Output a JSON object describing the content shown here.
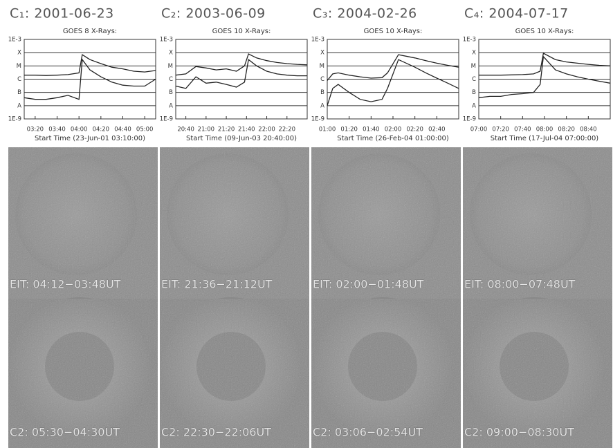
{
  "chart_data": [
    {
      "type": "line",
      "title": "C₁: 2001-06-23",
      "subtitle": "GOES 8 X-Rays:",
      "xlabel": "Start Time (23-Jun-01 03:10:00)",
      "x": [
        "03:10",
        "03:20",
        "03:30",
        "03:40",
        "03:50",
        "04:00",
        "04:03",
        "04:10",
        "04:20",
        "04:30",
        "04:40",
        "04:50",
        "05:00",
        "05:10"
      ],
      "xlim": [
        "03:10",
        "05:10"
      ],
      "xticks": [
        "03:20",
        "03:40",
        "04:00",
        "04:20",
        "04:40",
        "05:00"
      ],
      "log_scale": true,
      "ylim": [
        1e-09,
        0.001
      ],
      "yticks": [
        {
          "value": 1e-09,
          "label": "1E-9"
        },
        {
          "value": 1e-08,
          "label": "A"
        },
        {
          "value": 1e-07,
          "label": "B"
        },
        {
          "value": 1e-06,
          "label": "C"
        },
        {
          "value": 1e-05,
          "label": "M"
        },
        {
          "value": 0.0001,
          "label": "X"
        },
        {
          "value": 0.001,
          "label": "1E-3"
        }
      ],
      "grid": true,
      "series": [
        {
          "color": "#222222",
          "values": [
            2e-06,
            2e-06,
            1.9e-06,
            2e-06,
            2.2e-06,
            3e-06,
            7e-05,
            3e-05,
            1.5e-05,
            8e-06,
            6e-06,
            4e-06,
            3.5e-06,
            4.5e-06
          ]
        },
        {
          "color": "#222222",
          "values": [
            4e-08,
            3e-08,
            3e-08,
            4e-08,
            6e-08,
            3e-08,
            3e-05,
            5e-06,
            1.5e-06,
            6e-07,
            3.5e-07,
            3e-07,
            3e-07,
            1e-06
          ]
        }
      ]
    },
    {
      "type": "line",
      "title": "C₂: 2003-06-09",
      "subtitle": "GOES 10 X-Rays:",
      "xlabel": "Start Time (09-Jun-03 20:40:00)",
      "x": [
        "20:30",
        "20:40",
        "20:50",
        "21:00",
        "21:10",
        "21:20",
        "21:30",
        "21:38",
        "21:42",
        "21:50",
        "22:00",
        "22:10",
        "22:20",
        "22:30",
        "22:40"
      ],
      "xlim": [
        "20:30",
        "22:40"
      ],
      "xticks": [
        "20:40",
        "21:00",
        "21:20",
        "21:40",
        "22:00",
        "22:20"
      ],
      "log_scale": true,
      "ylim": [
        1e-09,
        0.001
      ],
      "yticks": [
        {
          "value": 1e-09,
          "label": "1E-9"
        },
        {
          "value": 1e-08,
          "label": "A"
        },
        {
          "value": 1e-07,
          "label": "B"
        },
        {
          "value": 1e-06,
          "label": "C"
        },
        {
          "value": 1e-05,
          "label": "M"
        },
        {
          "value": 0.0001,
          "label": "X"
        },
        {
          "value": 0.001,
          "label": "1E-3"
        }
      ],
      "grid": true,
      "series": [
        {
          "color": "#222222",
          "values": [
            2e-06,
            2.5e-06,
            9e-06,
            7e-06,
            5e-06,
            6e-06,
            4e-06,
            1e-05,
            8e-05,
            4e-05,
            2.5e-05,
            1.8e-05,
            1.5e-05,
            1.3e-05,
            1.2e-05
          ]
        },
        {
          "color": "#222222",
          "values": [
            3e-07,
            2e-07,
            1.5e-06,
            5e-07,
            6e-07,
            4e-07,
            2.5e-07,
            6e-07,
            3e-05,
            1e-05,
            4e-06,
            2.5e-06,
            2e-06,
            1.8e-06,
            1.8e-06
          ]
        }
      ]
    },
    {
      "type": "line",
      "title": "C₃: 2004-02-26",
      "subtitle": "GOES 10 X-Rays:",
      "xlabel": "Start Time (26-Feb-04 01:00:00)",
      "x": [
        "01:00",
        "01:05",
        "01:10",
        "01:20",
        "01:30",
        "01:40",
        "01:50",
        "01:55",
        "02:05",
        "02:20",
        "02:30",
        "02:40",
        "02:50",
        "03:00"
      ],
      "xlim": [
        "01:00",
        "03:00"
      ],
      "xticks": [
        "01:00",
        "01:20",
        "01:40",
        "02:00",
        "02:20",
        "02:40"
      ],
      "log_scale": true,
      "ylim": [
        1e-09,
        0.001
      ],
      "yticks": [
        {
          "value": 1e-09,
          "label": "1E-9"
        },
        {
          "value": 1e-08,
          "label": "A"
        },
        {
          "value": 1e-07,
          "label": "B"
        },
        {
          "value": 1e-06,
          "label": "C"
        },
        {
          "value": 1e-05,
          "label": "M"
        },
        {
          "value": 0.0001,
          "label": "X"
        },
        {
          "value": 0.001,
          "label": "1E-3"
        }
      ],
      "grid": true,
      "series": [
        {
          "color": "#222222",
          "values": [
            8e-07,
            2.5e-06,
            3e-06,
            2e-06,
            1.5e-06,
            1.2e-06,
            1.3e-06,
            3e-06,
            7e-05,
            4e-05,
            2.5e-05,
            1.6e-05,
            1.1e-05,
            8e-06
          ]
        },
        {
          "color": "#222222",
          "values": [
            1e-08,
            2e-07,
            4e-07,
            1e-07,
            3e-08,
            2e-08,
            3e-08,
            2e-07,
            3e-05,
            8e-06,
            3e-06,
            1.2e-06,
            5e-07,
            2e-07
          ]
        }
      ]
    },
    {
      "type": "line",
      "title": "C₄: 2004-07-17",
      "subtitle": "GOES 10 X-Rays:",
      "xlabel": "Start Time (17-Jul-04 07:00:00)",
      "x": [
        "07:00",
        "07:10",
        "07:20",
        "07:30",
        "07:40",
        "07:50",
        "07:56",
        "07:59",
        "08:10",
        "08:20",
        "08:30",
        "08:40",
        "08:50",
        "09:00"
      ],
      "xlim": [
        "07:00",
        "09:00"
      ],
      "xticks": [
        "07:00",
        "07:20",
        "07:40",
        "08:00",
        "08:20",
        "08:40"
      ],
      "log_scale": true,
      "ylim": [
        1e-09,
        0.001
      ],
      "yticks": [
        {
          "value": 1e-09,
          "label": "1E-9"
        },
        {
          "value": 1e-08,
          "label": "A"
        },
        {
          "value": 1e-07,
          "label": "B"
        },
        {
          "value": 1e-06,
          "label": "C"
        },
        {
          "value": 1e-05,
          "label": "M"
        },
        {
          "value": 0.0001,
          "label": "X"
        },
        {
          "value": 0.001,
          "label": "1E-3"
        }
      ],
      "grid": true,
      "series": [
        {
          "color": "#222222",
          "values": [
            2e-06,
            2e-06,
            2e-06,
            2.1e-06,
            2.2e-06,
            2.5e-06,
            4e-06,
            9e-05,
            3e-05,
            2e-05,
            1.6e-05,
            1.3e-05,
            1.1e-05,
            1e-05
          ]
        },
        {
          "color": "#222222",
          "values": [
            4e-08,
            5e-08,
            5e-08,
            7e-08,
            8e-08,
            1e-07,
            4e-07,
            5e-05,
            5e-06,
            2.5e-06,
            1.5e-06,
            1e-06,
            7e-07,
            5e-07
          ]
        }
      ]
    }
  ],
  "images": [
    {
      "eit": "EIT: 04:12−03:48UT",
      "c2": "C2: 05:30−04:30UT"
    },
    {
      "eit": "EIT: 21:36−21:12UT",
      "c2": "C2: 22:30−22:06UT"
    },
    {
      "eit": "EIT: 02:00−01:48UT",
      "c2": "C2: 03:06−02:54UT"
    },
    {
      "eit": "EIT: 08:00−07:48UT",
      "c2": "C2: 09:00−08:30UT"
    }
  ]
}
